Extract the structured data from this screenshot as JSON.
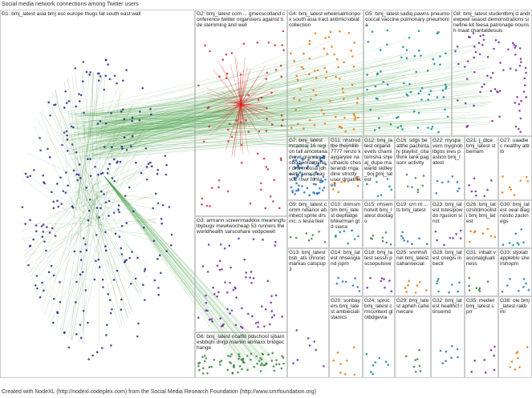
{
  "header": {
    "title": "Social media network connections among Twitter users"
  },
  "groups": [
    {
      "label": "G1: bmj_latest asia bmj esc europe thugs fat south east wall"
    },
    {
      "label": "G2: bmj_latest com ... gmecscotland conference twitter organisers against tide stemming and well"
    },
    {
      "label": "G3: armann screenmaddox meaningfulbybugv mewtwocheap 53 runners theworldhealth sarscohare vedpowell"
    },
    {
      "label": "G4: bmj_latest wheelsalmonpox south asia tract antimicrobial collection"
    },
    {
      "label": "G5: bmj_latest sadiq pawns pneumococcal vaccine pulmonary pneumonia"
    },
    {
      "label": "G6: bmj_latest ncatfill pdschool sjbarnesbbqhi dnrjp mainiin abmaxx bridgechange"
    },
    {
      "label": "G7: bmj_latest mcadoaj 16 region tall amcetanadrowl granninstrobody nlddpyher drsnmoosa jdhealty sweupeass02 rnwr fonta"
    },
    {
      "label": "G8: bmj_latest studentbmj d andrewpeel seaocl demonstrations sinefine kit feesa patronage nourish maat chantaldesuis"
    },
    {
      "label": "G11: nhstrodtbe thejmllib 7777 renzo kaygaryee nauthaiclo chesterandi rngadine strictly_user drgathikeit"
    },
    {
      "label": "G12: bmj_latest organdevels chamitomsha shjeaj_dupe mawarld skilley_boj bmj_latest"
    },
    {
      "label": "G16: sdgs beatthe pachintaly playlist_cita think tank pagsonr activity"
    },
    {
      "label": "G22: myspavern mygnoblbgos ines pastion bmj_latest"
    },
    {
      "label": "G21: j_dice bmj_latest stbemam"
    },
    {
      "label": "G27: uaadiec nealthy attrib"
    },
    {
      "label": "G10: drimsmtim bmj_latest deptlatge bhkerman gtd siana"
    },
    {
      "label": "G15: nhsemhotvilt bmj_latest dootago"
    },
    {
      "label": "G19: crn nt ...ts bmj_latest"
    },
    {
      "label": "G23: bmj_latest tstesipowdo rgusion sinct"
    },
    {
      "label": "G26: bmj_lat ozsitdmoolisti bmj bmj_latest"
    },
    {
      "label": "G30: bmj_latest oeal diagnostic zacknegs"
    },
    {
      "label": "G9: bmj_latest comm ndianor abinbect sprite drsmc..s tesla feel"
    },
    {
      "label": "G14: bmj_latest nhsengland jspm"
    },
    {
      "label": "G18: bmj_latest sessh pscsopulsive"
    },
    {
      "label": "G25: snmhsfinel bmj_latest cahanoecial"
    },
    {
      "label": "G28: bmj_latest cnegis inbeck"
    },
    {
      "label": "G31: inbatt vaccinalgluatiness"
    },
    {
      "label": "G33: stjolab appleblo shelrshopm"
    },
    {
      "label": "G13: bmj_latest bsb_ats chronic markas catspup3"
    },
    {
      "label": "G20: sonbayers bmj_latest ambiecialistanics"
    },
    {
      "label": "G24: sproc bmj_latest crmcontext glotbdgevia"
    },
    {
      "label": "G29: bmj_latest apheh cahe nwcare"
    },
    {
      "label": "G32: bmj_latest healthcf rtinsemd"
    },
    {
      "label": "G35: mediel bmj_latest sprr"
    },
    {
      "label": "G38: ole bmj_latest rakbmi"
    }
  ],
  "footer": {
    "text": "Created with NodeXL (http://nodexl.codeplex.com) from the Social Media Research Foundation (http://www.smrfoundation.org)"
  }
}
